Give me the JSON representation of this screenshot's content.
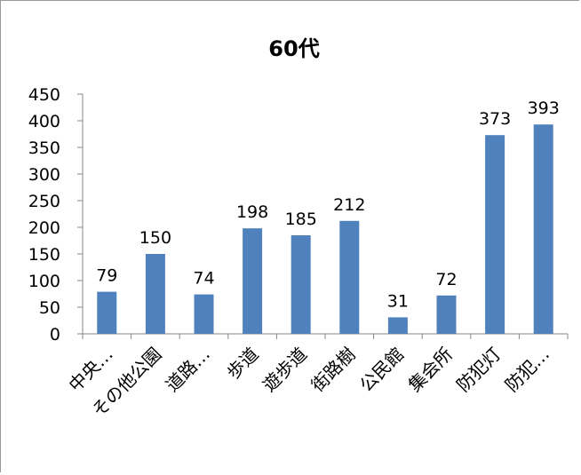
{
  "chart_data": {
    "type": "bar",
    "title": "60代",
    "categories": [
      "中央…",
      "その他公園",
      "道路…",
      "歩道",
      "遊歩道",
      "街路樹",
      "公民館",
      "集会所",
      "防犯灯",
      "防犯…"
    ],
    "values": [
      79,
      150,
      74,
      198,
      185,
      212,
      31,
      72,
      373,
      393
    ],
    "ylim": [
      0,
      450
    ],
    "yticks": [
      0,
      50,
      100,
      150,
      200,
      250,
      300,
      350,
      400,
      450
    ],
    "xlabel": "",
    "ylabel": "",
    "grid": false,
    "legend": false,
    "bar_color": "#4f81bd",
    "data_labels": true
  }
}
